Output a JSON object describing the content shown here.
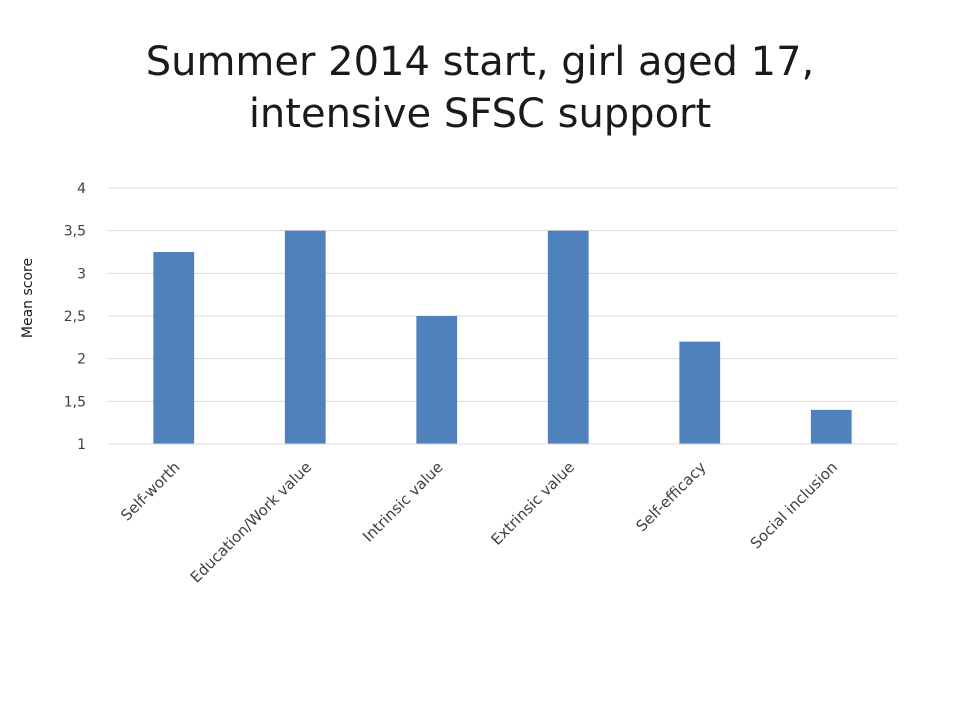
{
  "chart_data": {
    "type": "bar",
    "title_lines": [
      "Summer 2014 start, girl aged 17,",
      "intensive SFSC support"
    ],
    "xlabel": "",
    "ylabel": "Mean score",
    "categories": [
      "Self-worth",
      "Education/Work value",
      "Intrinsic value",
      "Extrinsic value",
      "Self-efficacy",
      "Social inclusion"
    ],
    "values": [
      3.25,
      3.5,
      2.5,
      3.5,
      2.2,
      1.4
    ],
    "ylim": [
      1,
      4
    ],
    "yticks": [
      "1",
      "1,5",
      "2",
      "2,5",
      "3",
      "3,5",
      "4"
    ],
    "grid": true,
    "legend": "none",
    "colors": {
      "bar": "#4f81bd",
      "grid": "#d9d9d9"
    }
  }
}
